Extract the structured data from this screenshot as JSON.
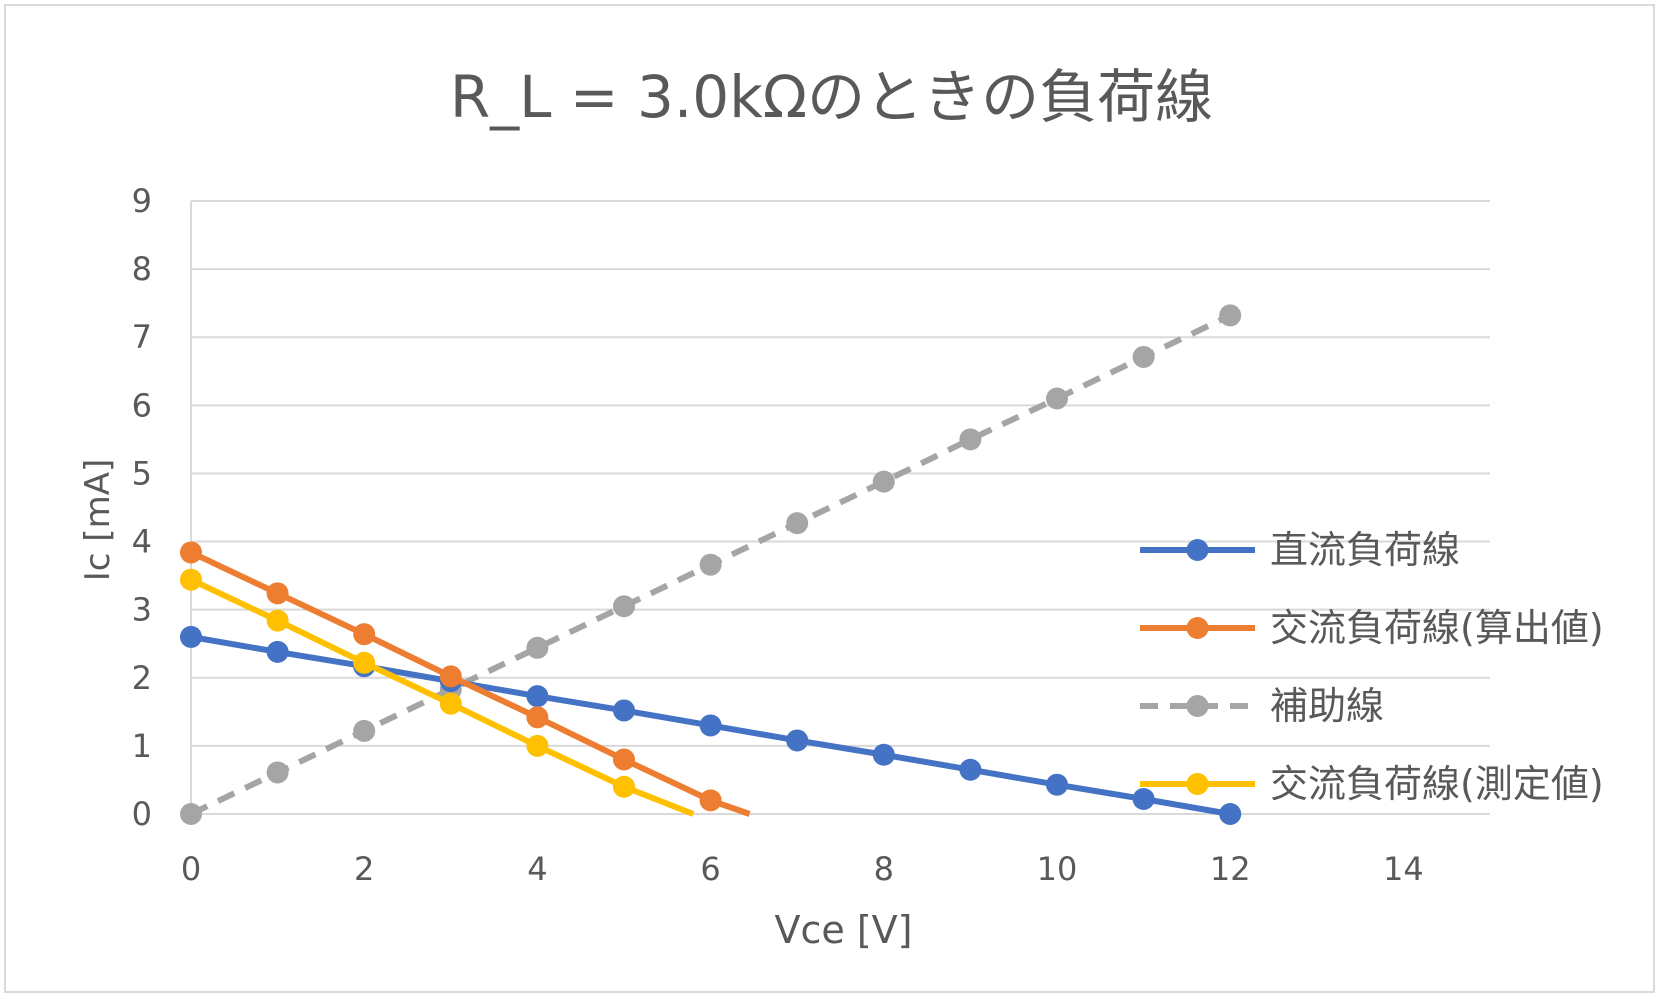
{
  "chart_data": {
    "type": "line",
    "title": "R_L = 3.0kΩのときの負荷線",
    "xlabel": "Vce [V]",
    "ylabel": "Ic [mA]",
    "xlim": [
      0,
      15
    ],
    "ylim": [
      0,
      9
    ],
    "xticks": [
      0,
      2,
      4,
      6,
      8,
      10,
      12,
      14
    ],
    "yticks": [
      0,
      1,
      2,
      3,
      4,
      5,
      6,
      7,
      8,
      9
    ],
    "grid": "horizontal",
    "legend_position": "right",
    "series": [
      {
        "name": "直流負荷線",
        "color": "#4472C4",
        "dashed": false,
        "markers": true,
        "x": [
          0,
          1,
          2,
          3,
          4,
          5,
          6,
          7,
          8,
          9,
          10,
          11,
          12
        ],
        "y": [
          2.6,
          2.38,
          2.17,
          1.95,
          1.73,
          1.52,
          1.3,
          1.08,
          0.87,
          0.65,
          0.43,
          0.22,
          0.0
        ]
      },
      {
        "name": "交流負荷線(算出値)",
        "color": "#ED7D31",
        "dashed": false,
        "markers": true,
        "x": [
          0,
          1,
          2,
          3,
          4,
          5,
          6
        ],
        "y": [
          3.84,
          3.24,
          2.64,
          2.02,
          1.42,
          0.8,
          0.2
        ],
        "line_extends_to": [
          6.45,
          0
        ]
      },
      {
        "name": "補助線",
        "color": "#A5A5A5",
        "dashed": true,
        "markers": true,
        "x": [
          0,
          1,
          2,
          3,
          4,
          5,
          6,
          7,
          8,
          9,
          10,
          11,
          12
        ],
        "y": [
          0.0,
          0.61,
          1.22,
          1.83,
          2.44,
          3.05,
          3.66,
          4.27,
          4.88,
          5.5,
          6.1,
          6.71,
          7.32
        ]
      },
      {
        "name": "交流負荷線(測定値)",
        "color": "#FFC000",
        "dashed": false,
        "markers": true,
        "x": [
          0,
          1,
          2,
          3,
          4,
          5
        ],
        "y": [
          3.44,
          2.84,
          2.22,
          1.62,
          1.0,
          0.4
        ],
        "line_extends_to": [
          5.8,
          0
        ]
      }
    ]
  }
}
